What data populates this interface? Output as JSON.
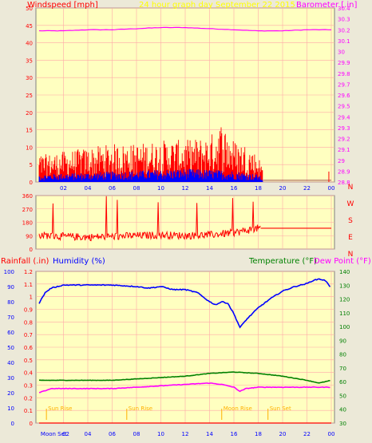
{
  "colors": {
    "plot_bg": "#ffffc0",
    "grid": "#ffa8a8",
    "axis_text_left_top": "#ff0000",
    "baro": "#ff00ff",
    "title": "#ffff00",
    "wind_avg": "#0000ff",
    "wind_gust": "#ff0000",
    "dir": "#ff0000",
    "humidity": "#0000ff",
    "temperature": "#008000",
    "dewpoint": "#ff00ff",
    "rain": "#ff0000",
    "marker": "#ffb000"
  },
  "chart_data": [
    {
      "type": "line",
      "name": "wind-barometer",
      "title": "24 hour graph day",
      "subtitle": "September 22 2015",
      "ylabel_left": "Windspeed [mph]",
      "ylabel_right": "Barometer [.in]",
      "ylim_left": [
        0,
        50
      ],
      "ylim_right": [
        28.8,
        30.4
      ],
      "x_ticks": [
        "02",
        "04",
        "06",
        "08",
        "10",
        "12",
        "14",
        "16",
        "18",
        "20",
        "22",
        "00"
      ],
      "y_ticks_left": [
        "0",
        "5",
        "10",
        "15",
        "20",
        "25",
        "30",
        "35",
        "40",
        "45",
        "50"
      ],
      "y_ticks_right": [
        "28.8",
        "28.9",
        "29",
        "29.1",
        "29.2",
        "29.3",
        "29.4",
        "29.5",
        "29.6",
        "29.7",
        "29.8",
        "29.9",
        "30",
        "30.1",
        "30.2",
        "30.3",
        "30.4"
      ],
      "grid": true,
      "series": [
        {
          "role": "barometer",
          "x": [
            0,
            2,
            4,
            6,
            8,
            10,
            12,
            14,
            16,
            18,
            20,
            22,
            24
          ],
          "y": [
            30.19,
            30.19,
            30.2,
            30.2,
            30.21,
            30.22,
            30.22,
            30.21,
            30.2,
            30.19,
            30.19,
            30.2,
            30.2
          ]
        },
        {
          "role": "gust",
          "envelope_x": [
            0,
            2,
            4,
            6,
            8,
            10,
            12,
            14,
            15,
            16,
            17,
            18,
            18.4
          ],
          "envelope_y": [
            7,
            8,
            9,
            10,
            10,
            11,
            11,
            12,
            16,
            11,
            10,
            7,
            4
          ]
        },
        {
          "role": "average",
          "envelope_x": [
            0,
            4,
            8,
            12,
            16,
            18,
            18.4
          ],
          "envelope_y": [
            2,
            2.5,
            3,
            3.5,
            3,
            2,
            1
          ]
        }
      ]
    },
    {
      "type": "scatter",
      "name": "wind-direction",
      "ylim": [
        0,
        360
      ],
      "y_ticks": [
        "0",
        "90",
        "180",
        "270",
        "360"
      ],
      "compass_right": [
        "N",
        "W",
        "S",
        "E",
        "N"
      ],
      "series": [
        {
          "role": "direction",
          "x": [
            0,
            2,
            4,
            6,
            8,
            10,
            12,
            14,
            16,
            17,
            18,
            18.5,
            20,
            22,
            24
          ],
          "y": [
            95,
            85,
            80,
            85,
            90,
            95,
            90,
            95,
            110,
            125,
            140,
            140,
            140,
            140,
            140
          ]
        }
      ]
    },
    {
      "type": "line",
      "name": "temp-humidity-rain",
      "ylabel_left_rain": "Rainfall (.in)",
      "ylabel_left_hum": "Humidity (%)",
      "ylabel_right_temp": "Temperature (°F)",
      "ylabel_right_dew": "Dew Point (°F)",
      "ylim_rain": [
        0,
        1.2
      ],
      "ylim_hum": [
        0,
        100
      ],
      "ylim_temp": [
        30,
        140
      ],
      "y_ticks_rain": [
        "0",
        "0.1",
        "0.2",
        "0.3",
        "0.4",
        "0.5",
        "0.6",
        "0.7",
        "0.8",
        "0.9",
        "1",
        "1.1",
        "1.2"
      ],
      "y_ticks_hum": [
        "0",
        "10",
        "20",
        "30",
        "40",
        "50",
        "60",
        "70",
        "80",
        "90",
        "100"
      ],
      "y_ticks_temp": [
        "30",
        "40",
        "50",
        "60",
        "70",
        "80",
        "90",
        "100",
        "110",
        "120",
        "130",
        "140"
      ],
      "x_ticks": [
        "04",
        "06",
        "08",
        "10",
        "12",
        "14",
        "16",
        "18",
        "20",
        "22",
        "00"
      ],
      "x_ticks_special": [
        "Moon Set",
        "02"
      ],
      "grid": true,
      "series": [
        {
          "role": "humidity",
          "x": [
            0,
            0.5,
            1,
            2,
            4,
            6,
            8,
            9,
            10,
            11,
            12,
            13,
            14,
            14.5,
            15,
            15.5,
            16,
            16.5,
            17,
            18,
            19,
            20,
            21,
            22,
            22.5,
            23,
            23.5,
            24
          ],
          "y": [
            79,
            86,
            89,
            91,
            91,
            91,
            90,
            89,
            90,
            88,
            88,
            86,
            80,
            78,
            80,
            79,
            72,
            63,
            68,
            76,
            82,
            87,
            90,
            92,
            94,
            95,
            94,
            89
          ]
        },
        {
          "role": "temperature",
          "x": [
            0,
            2,
            4,
            6,
            8,
            10,
            12,
            14,
            16,
            18,
            20,
            22,
            23,
            24
          ],
          "y": [
            61,
            61,
            61,
            61,
            62,
            63,
            64,
            66,
            67,
            66,
            64,
            61,
            59,
            61
          ]
        },
        {
          "role": "dewpoint",
          "x": [
            0,
            1,
            2,
            4,
            6,
            8,
            10,
            12,
            14,
            15,
            16,
            16.5,
            17,
            18,
            20,
            22,
            24
          ],
          "y": [
            52,
            55,
            55,
            55,
            55,
            56,
            57,
            58,
            59,
            58,
            56,
            53,
            55,
            56,
            56,
            56,
            56
          ]
        },
        {
          "role": "rain",
          "x": [
            0,
            24
          ],
          "y": [
            0,
            0
          ]
        }
      ],
      "markers": [
        {
          "label": "Sun Rise",
          "x": 0.6
        },
        {
          "label": "Sun Rise",
          "x": 7.2
        },
        {
          "label": "Moon Rise",
          "x": 15.0
        },
        {
          "label": "Sun Set",
          "x": 18.8
        }
      ]
    }
  ]
}
